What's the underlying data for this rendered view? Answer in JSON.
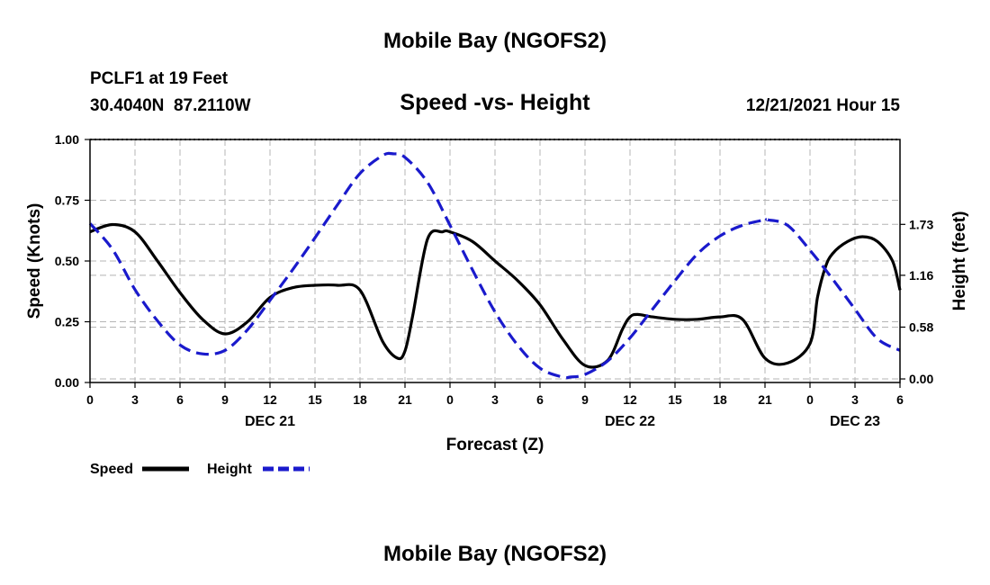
{
  "header": {
    "title": "Mobile Bay (NGOFS2)",
    "station": "PCLF1 at 19 Feet",
    "coords": "30.4040N  87.2110W",
    "subtitle": "Speed -vs- Height",
    "datetime": "12/21/2021 Hour 15"
  },
  "footer": {
    "title": "Mobile Bay (NGOFS2)"
  },
  "chart_data": {
    "type": "line",
    "title": "Speed -vs- Height",
    "xlabel": "Forecast (Z)",
    "ylabel": "Speed (Knots)",
    "y2label": "Height (feet)",
    "xlim": [
      0,
      54
    ],
    "ylim": [
      0,
      1.0
    ],
    "y2lim": [
      -0.04,
      2.68
    ],
    "x_ticks": [
      0,
      3,
      6,
      9,
      12,
      15,
      18,
      21,
      24,
      27,
      30,
      33,
      36,
      39,
      42,
      45,
      48,
      51,
      54
    ],
    "x_tick_labels": [
      "0",
      "3",
      "6",
      "9",
      "12",
      "15",
      "18",
      "21",
      "0",
      "3",
      "6",
      "9",
      "12",
      "15",
      "18",
      "21",
      "0",
      "3",
      "6"
    ],
    "date_labels": [
      {
        "x": 12,
        "label": "DEC 21"
      },
      {
        "x": 36,
        "label": "DEC 22"
      },
      {
        "x": 51,
        "label": "DEC 23"
      }
    ],
    "y_ticks": [
      0.0,
      0.25,
      0.5,
      0.75,
      1.0
    ],
    "y_tick_labels": [
      "0.00",
      "0.25",
      "0.50",
      "0.75",
      "1.00"
    ],
    "y2_ticks": [
      0.0,
      0.58,
      1.16,
      1.73
    ],
    "y2_tick_labels": [
      "0.00",
      "0.58",
      "1.16",
      "1.73"
    ],
    "grid": true,
    "legend": [
      {
        "name": "Speed",
        "color": "#000000",
        "style": "solid"
      },
      {
        "name": "Height",
        "color": "#1a1acc",
        "style": "dashed"
      }
    ],
    "series": [
      {
        "name": "Speed",
        "axis": "left",
        "color": "#000000",
        "style": "solid",
        "x": [
          0,
          1.5,
          3,
          4.5,
          6,
          7.5,
          9,
          10.5,
          12,
          13.5,
          15,
          16.5,
          18,
          19.5,
          20.5,
          21,
          21.5,
          22.5,
          23.5,
          24,
          25.5,
          27,
          28.5,
          30,
          31.5,
          33,
          34.5,
          35.5,
          36,
          36.5,
          37.5,
          39,
          40.5,
          42,
          43.5,
          45,
          46.5,
          48,
          48.5,
          49,
          49.5,
          50.5,
          51.5,
          52.5,
          53.5,
          54
        ],
        "values": [
          0.62,
          0.65,
          0.62,
          0.5,
          0.37,
          0.26,
          0.2,
          0.25,
          0.35,
          0.39,
          0.4,
          0.4,
          0.38,
          0.17,
          0.1,
          0.13,
          0.27,
          0.59,
          0.62,
          0.62,
          0.58,
          0.5,
          0.42,
          0.32,
          0.18,
          0.07,
          0.09,
          0.22,
          0.27,
          0.28,
          0.27,
          0.26,
          0.26,
          0.27,
          0.26,
          0.1,
          0.08,
          0.16,
          0.35,
          0.47,
          0.53,
          0.58,
          0.6,
          0.58,
          0.5,
          0.38
        ]
      },
      {
        "name": "Height",
        "axis": "right",
        "color": "#1a1acc",
        "style": "dashed",
        "x": [
          0,
          1.5,
          3,
          4.5,
          6,
          7.5,
          9,
          10.5,
          12,
          13.5,
          15,
          16.5,
          18,
          19.5,
          20.2,
          21,
          22.5,
          24,
          25.5,
          27,
          28.5,
          30,
          31.5,
          32,
          33,
          34.5,
          36,
          37.5,
          39,
          40.5,
          42,
          43.5,
          45,
          45.2,
          46.5,
          48,
          49.5,
          51,
          52.5,
          54
        ],
        "values": [
          1.74,
          1.45,
          1.0,
          0.65,
          0.38,
          0.28,
          0.32,
          0.55,
          0.88,
          1.22,
          1.58,
          1.95,
          2.3,
          2.5,
          2.52,
          2.48,
          2.2,
          1.72,
          1.22,
          0.75,
          0.38,
          0.12,
          0.02,
          0.02,
          0.05,
          0.2,
          0.46,
          0.78,
          1.1,
          1.4,
          1.6,
          1.72,
          1.78,
          1.78,
          1.72,
          1.44,
          1.12,
          0.78,
          0.45,
          0.32
        ]
      }
    ]
  }
}
